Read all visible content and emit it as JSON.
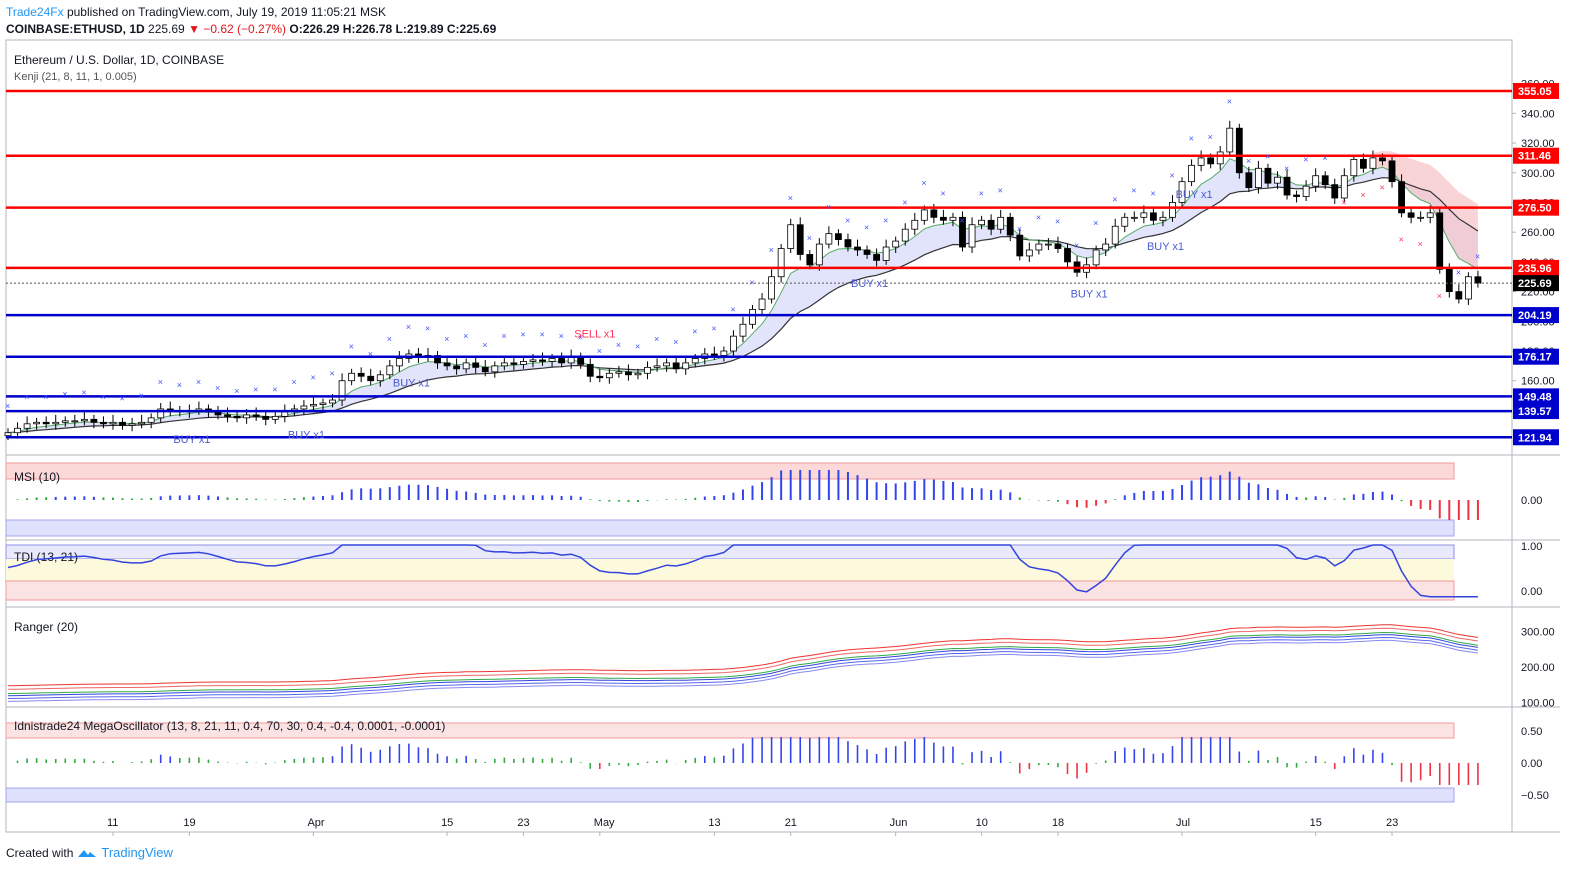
{
  "header": {
    "brand": "Trade24Fx",
    "published": "published on TradingView.com, July 19, 2019 11:05:21 MSK",
    "symbol": "COINBASE:ETHUSD, 1D",
    "last": "225.69",
    "change": "−0.62 (−0.27%)",
    "o": "O:226.29",
    "h": "H:226.78",
    "l": "L:219.89",
    "c": "C:225.69"
  },
  "footer": {
    "created_with": "Created with",
    "brand": "TradingView"
  },
  "colors": {
    "red_level": "#ff0000",
    "blue_level": "#0000cc",
    "up": "#ffffff",
    "down": "#000000",
    "buy": "#3f51ff",
    "sell": "#ff3355",
    "last_tag": "#000000"
  },
  "chart_data": [
    {
      "type": "candlestick",
      "title": "Ethereum / U.S. Dollar, 1D, COINBASE",
      "overlay": "Kenji (21, 8, 11, 1, 0.005)",
      "ylim": [
        110,
        370
      ],
      "yticks": [
        160,
        180,
        200,
        220,
        240,
        260,
        280,
        300,
        320,
        340,
        360
      ],
      "ytick_labels": [
        "160.00",
        "180.00",
        "200.00",
        "220.00",
        "240.00",
        "260.00",
        "280.00",
        "300.00",
        "320.00",
        "340.00",
        "360.00"
      ],
      "x_labels": [
        {
          "label": "11",
          "day": 11
        },
        {
          "label": "19",
          "day": 19
        },
        {
          "label": "Apr",
          "day": 32
        },
        {
          "label": "15",
          "day": 46
        },
        {
          "label": "23",
          "day": 54
        },
        {
          "label": "May",
          "day": 62
        },
        {
          "label": "13",
          "day": 74
        },
        {
          "label": "21",
          "day": 82
        },
        {
          "label": "Jun",
          "day": 93
        },
        {
          "label": "10",
          "day": 102
        },
        {
          "label": "18",
          "day": 110
        },
        {
          "label": "Jul",
          "day": 123
        },
        {
          "label": "15",
          "day": 137
        },
        {
          "label": "23",
          "day": 145
        }
      ],
      "levels": [
        {
          "value": 355.05,
          "label": "355.05",
          "color": "red"
        },
        {
          "value": 311.46,
          "label": "311.46",
          "color": "red"
        },
        {
          "value": 276.5,
          "label": "276.50",
          "color": "red"
        },
        {
          "value": 235.96,
          "label": "235.96",
          "color": "red"
        },
        {
          "value": 204.19,
          "label": "204.19",
          "color": "blue"
        },
        {
          "value": 176.17,
          "label": "176.17",
          "color": "blue"
        },
        {
          "value": 149.48,
          "label": "149.48",
          "color": "blue"
        },
        {
          "value": 139.57,
          "label": "139.57",
          "color": "blue"
        },
        {
          "value": 121.94,
          "label": "121.94",
          "color": "blue"
        }
      ],
      "last_price": {
        "value": 225.69,
        "label": "225.69"
      },
      "signals": [
        {
          "label": "BUY x1",
          "day": 19
        },
        {
          "label": "BUY x1",
          "day": 31
        },
        {
          "label": "BUY x1",
          "day": 42
        },
        {
          "label": "SELL x1",
          "day": 61
        },
        {
          "label": "BUY x1",
          "day": 90
        },
        {
          "label": "BUY x1",
          "day": 113
        },
        {
          "label": "BUY x1",
          "day": 121
        },
        {
          "label": "BUY x1",
          "day": 124
        }
      ],
      "close": [
        125,
        128,
        131,
        132,
        131,
        132,
        133,
        133,
        134,
        132,
        131,
        132,
        130,
        131,
        132,
        135,
        141,
        140,
        139,
        140,
        141,
        139,
        137,
        136,
        135,
        137,
        136,
        134,
        136,
        139,
        141,
        143,
        144,
        145,
        147,
        160,
        165,
        163,
        160,
        164,
        170,
        175,
        178,
        176,
        177,
        172,
        170,
        168,
        172,
        169,
        166,
        170,
        172,
        171,
        173,
        174,
        173,
        175,
        172,
        176,
        171,
        163,
        162,
        165,
        166,
        164,
        165,
        169,
        170,
        172,
        168,
        172,
        175,
        178,
        177,
        180,
        190,
        198,
        208,
        215,
        230,
        249,
        265,
        245,
        238,
        252,
        259,
        255,
        250,
        248,
        245,
        241,
        250,
        254,
        262,
        268,
        275,
        270,
        268,
        270,
        250,
        265,
        268,
        262,
        270,
        258,
        244,
        248,
        252,
        252,
        249,
        240,
        233,
        238,
        248,
        252,
        264,
        270,
        270,
        273,
        268,
        270,
        280,
        294,
        305,
        310,
        306,
        314,
        330,
        300,
        290,
        303,
        293,
        297,
        285,
        284,
        291,
        298,
        292,
        283,
        298,
        309,
        303,
        310,
        308,
        294,
        273,
        270,
        270,
        273,
        235,
        220,
        215,
        230,
        225.69
      ],
      "ranger_ylim": [
        90,
        360
      ],
      "ranger_yticks": [
        100,
        200,
        300
      ],
      "msi_title": "MSI (10)",
      "msi_yticks": [
        {
          "value": 0,
          "label": "0.00"
        }
      ],
      "tdi_title": "TDI (13, 21)",
      "tdi_yticks": [
        {
          "value": 1,
          "label": "1.00"
        },
        {
          "value": 0,
          "label": "0.00"
        }
      ],
      "ranger_title": "Ranger (20)",
      "ranger_ytick_labels": [
        "100.00",
        "200.00",
        "300.00"
      ],
      "mega_title": "Idnistrade24 MegaOscillator (13, 8, 21, 11, 0.4, 70, 30, 0.4, -0.4, 0.0001, -0.0001)",
      "mega_yticks": [
        {
          "value": 0.5,
          "label": "0.50"
        },
        {
          "value": 0,
          "label": "0.00"
        },
        {
          "value": -0.5,
          "label": "−0.50"
        }
      ]
    }
  ]
}
